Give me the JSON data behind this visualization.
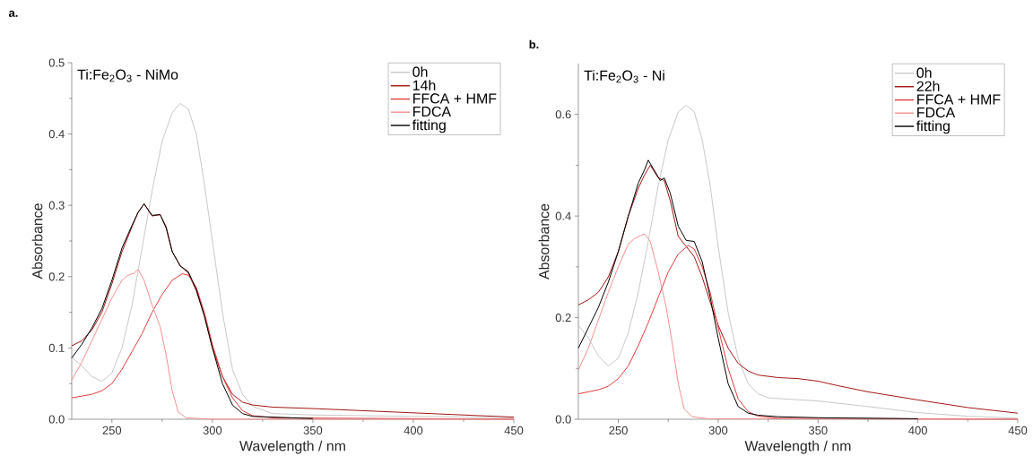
{
  "chart_data": [
    {
      "type": "line",
      "title": "a.",
      "xlabel": "Wavelength / nm",
      "ylabel": "Absorbance",
      "annotations": [
        "Ti:Fe$_{2}$O$_{3}$ - NiMo"
      ],
      "legend": "top right",
      "line_style": "solid",
      "xlim": [
        230,
        450
      ],
      "ylim": [
        0,
        0.5
      ],
      "xticks": [
        250,
        300,
        350,
        400,
        450
      ],
      "yticks": [
        {
          "value": 0,
          "label": "0.0"
        },
        0.1,
        0.2,
        0.3,
        0.4,
        0.5
      ],
      "series": [
        {
          "name": "0h",
          "color": "#c8c8c8",
          "x": [
            230,
            235,
            240,
            245,
            250,
            255,
            260,
            265,
            270,
            275,
            280,
            284,
            288,
            292,
            296,
            300,
            305,
            310,
            315,
            320,
            330,
            350,
            400,
            450
          ],
          "values": [
            0.087,
            0.075,
            0.06,
            0.053,
            0.065,
            0.1,
            0.16,
            0.24,
            0.32,
            0.39,
            0.43,
            0.443,
            0.435,
            0.4,
            0.33,
            0.25,
            0.15,
            0.07,
            0.035,
            0.018,
            0.008,
            0.006,
            0.004,
            0.002
          ]
        },
        {
          "name": "14h",
          "color": "#a31515",
          "x": [
            230,
            235,
            240,
            245,
            250,
            255,
            260,
            263,
            266,
            270,
            274,
            277,
            280,
            284,
            288,
            292,
            296,
            300,
            305,
            310,
            315,
            320,
            330,
            350,
            400,
            450
          ],
          "values": [
            0.103,
            0.11,
            0.125,
            0.15,
            0.19,
            0.235,
            0.27,
            0.29,
            0.302,
            0.285,
            0.287,
            0.27,
            0.235,
            0.215,
            0.205,
            0.18,
            0.145,
            0.1,
            0.06,
            0.035,
            0.024,
            0.02,
            0.017,
            0.015,
            0.009,
            0.003
          ]
        },
        {
          "name": "FFCA + HMF",
          "color": "#e03c3c",
          "x": [
            230,
            240,
            245,
            250,
            255,
            260,
            265,
            270,
            275,
            280,
            285,
            288,
            292,
            296,
            300,
            305,
            310,
            315,
            320,
            330,
            450
          ],
          "values": [
            0.03,
            0.035,
            0.04,
            0.05,
            0.07,
            0.095,
            0.12,
            0.15,
            0.175,
            0.195,
            0.204,
            0.202,
            0.185,
            0.15,
            0.105,
            0.06,
            0.03,
            0.012,
            0.005,
            0.002,
            0
          ]
        },
        {
          "name": "FDCA",
          "color": "#f29191",
          "x": [
            230,
            235,
            240,
            245,
            250,
            255,
            258,
            261,
            263,
            266,
            270,
            274,
            277,
            280,
            283,
            287,
            300,
            450
          ],
          "values": [
            0.055,
            0.08,
            0.11,
            0.14,
            0.17,
            0.195,
            0.202,
            0.205,
            0.21,
            0.195,
            0.16,
            0.13,
            0.09,
            0.04,
            0.01,
            0.002,
            0,
            0
          ]
        },
        {
          "name": "fitting",
          "color": "#000000",
          "x": [
            230,
            235,
            240,
            245,
            250,
            255,
            260,
            263,
            266,
            270,
            274,
            277,
            280,
            284,
            288,
            292,
            296,
            300,
            305,
            310,
            315,
            320,
            350
          ],
          "values": [
            0.086,
            0.105,
            0.128,
            0.155,
            0.195,
            0.24,
            0.272,
            0.29,
            0.302,
            0.286,
            0.287,
            0.268,
            0.235,
            0.215,
            0.207,
            0.182,
            0.145,
            0.1,
            0.05,
            0.02,
            0.008,
            0.004,
            0.001
          ]
        }
      ]
    },
    {
      "type": "line",
      "title": "b.",
      "xlabel": "Wavelength / nm",
      "ylabel": "Absorbance",
      "annotations": [
        "Ti:Fe$_{2}$O$_{3}$ - Ni"
      ],
      "legend": "top right",
      "line_style": "solid",
      "xlim": [
        230,
        450
      ],
      "ylim": [
        0,
        0.7
      ],
      "xticks": [
        250,
        300,
        350,
        400,
        450
      ],
      "yticks": [
        {
          "value": 0,
          "label": "0.0"
        },
        0.2,
        0.4,
        0.6
      ],
      "series": [
        {
          "name": "0h",
          "color": "#c8c8c8",
          "x": [
            230,
            235,
            240,
            245,
            250,
            255,
            260,
            265,
            270,
            275,
            280,
            284,
            288,
            292,
            296,
            300,
            305,
            310,
            315,
            320,
            325,
            350,
            375,
            400,
            425,
            450
          ],
          "values": [
            0.185,
            0.16,
            0.125,
            0.105,
            0.12,
            0.17,
            0.25,
            0.35,
            0.46,
            0.55,
            0.605,
            0.618,
            0.605,
            0.55,
            0.46,
            0.34,
            0.21,
            0.12,
            0.07,
            0.05,
            0.042,
            0.036,
            0.025,
            0.013,
            0.006,
            0.002
          ]
        },
        {
          "name": "22h",
          "color": "#a31515",
          "x": [
            230,
            235,
            240,
            245,
            250,
            255,
            260,
            263,
            266,
            270,
            273,
            276,
            280,
            284,
            288,
            292,
            296,
            300,
            305,
            310,
            315,
            320,
            330,
            340,
            350,
            360,
            375,
            400,
            425,
            450
          ],
          "values": [
            0.225,
            0.235,
            0.25,
            0.28,
            0.33,
            0.4,
            0.455,
            0.48,
            0.5,
            0.475,
            0.47,
            0.43,
            0.36,
            0.34,
            0.32,
            0.28,
            0.23,
            0.185,
            0.14,
            0.11,
            0.095,
            0.087,
            0.082,
            0.08,
            0.075,
            0.066,
            0.054,
            0.038,
            0.023,
            0.012
          ]
        },
        {
          "name": "FFCA + HMF",
          "color": "#e03c3c",
          "x": [
            230,
            240,
            245,
            250,
            255,
            260,
            265,
            270,
            275,
            280,
            285,
            288,
            292,
            296,
            300,
            305,
            310,
            315,
            320,
            330,
            450
          ],
          "values": [
            0.05,
            0.058,
            0.065,
            0.08,
            0.105,
            0.145,
            0.19,
            0.24,
            0.29,
            0.325,
            0.342,
            0.335,
            0.3,
            0.25,
            0.18,
            0.1,
            0.04,
            0.015,
            0.006,
            0.002,
            0
          ]
        },
        {
          "name": "FDCA",
          "color": "#f29191",
          "x": [
            230,
            235,
            240,
            245,
            250,
            255,
            258,
            263,
            266,
            270,
            274,
            277,
            280,
            283,
            287,
            295,
            450
          ],
          "values": [
            0.097,
            0.14,
            0.195,
            0.25,
            0.3,
            0.345,
            0.355,
            0.365,
            0.35,
            0.29,
            0.22,
            0.15,
            0.07,
            0.02,
            0.005,
            0.001,
            0
          ]
        },
        {
          "name": "fitting",
          "color": "#000000",
          "x": [
            230,
            235,
            240,
            245,
            250,
            255,
            260,
            263,
            265,
            268,
            271,
            273,
            276,
            280,
            284,
            288,
            292,
            296,
            300,
            305,
            310,
            315,
            320,
            330,
            350,
            400
          ],
          "values": [
            0.14,
            0.18,
            0.22,
            0.27,
            0.33,
            0.4,
            0.465,
            0.49,
            0.51,
            0.49,
            0.47,
            0.475,
            0.445,
            0.38,
            0.352,
            0.35,
            0.31,
            0.24,
            0.16,
            0.07,
            0.025,
            0.012,
            0.008,
            0.005,
            0.003,
            0.001
          ]
        }
      ]
    }
  ]
}
